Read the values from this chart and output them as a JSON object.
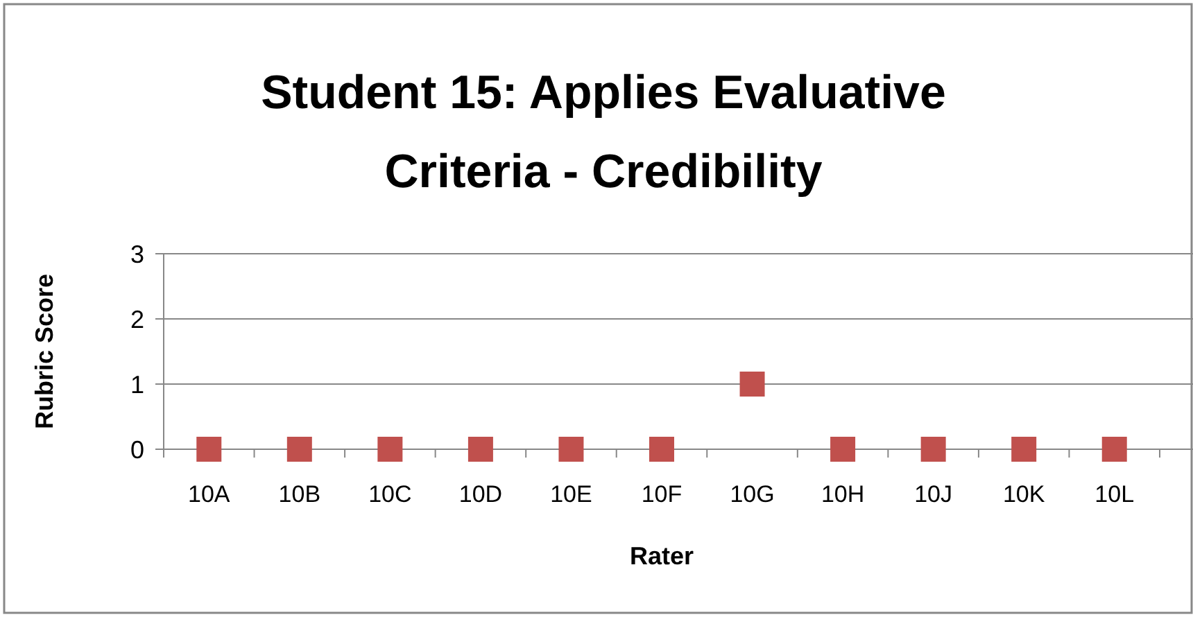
{
  "chart_data": {
    "type": "scatter",
    "title": "Student 15: Applies Evaluative Criteria - Credibility",
    "xlabel": "Rater",
    "ylabel": "Rubric Score",
    "categories": [
      "10A",
      "10B",
      "10C",
      "10D",
      "10E",
      "10F",
      "10G",
      "10H",
      "10J",
      "10K",
      "10L"
    ],
    "series": [
      {
        "color": "#c0504d",
        "values": [
          0,
          0,
          0,
          0,
          0,
          0,
          1,
          0,
          0,
          0,
          0
        ]
      }
    ],
    "ylim": [
      0,
      3
    ],
    "yticks": [
      0,
      1,
      2,
      3
    ],
    "grid": "y",
    "marker": "square"
  }
}
